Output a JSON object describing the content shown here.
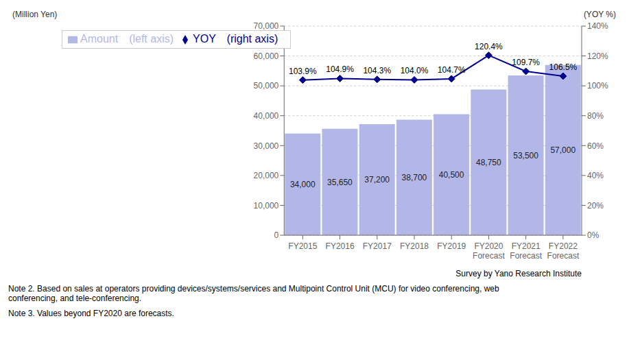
{
  "chart_data": {
    "type": "bar",
    "categories": [
      "FY2015",
      "FY2016",
      "FY2017",
      "FY2018",
      "FY2019",
      "FY2020\nForecast",
      "FY2021\nForecast",
      "FY2022\nForecast"
    ],
    "series": [
      {
        "name": "Amount　(left axis)",
        "type": "bar",
        "color": "#b3b7e8",
        "values": [
          34000,
          35650,
          37200,
          38700,
          40500,
          48750,
          53500,
          57000
        ],
        "value_labels": [
          "34,000",
          "35,650",
          "37,200",
          "38,700",
          "40,500",
          "48,750",
          "53,500",
          "57,000"
        ]
      },
      {
        "name": "YOY　(right axis)",
        "type": "line",
        "axis": "y2",
        "color": "#00008b",
        "marker": "diamond",
        "line_style": "solid",
        "values": [
          103.9,
          104.9,
          104.3,
          104.0,
          104.7,
          120.4,
          109.7,
          106.5
        ],
        "value_labels": [
          "103.9%",
          "104.9%",
          "104.3%",
          "104.0%",
          "104.7%",
          "120.4%",
          "109.7%",
          "106.5%"
        ]
      }
    ],
    "ylabel": "(Million Yen)",
    "y2label": "(YOY %)",
    "ylim": [
      0,
      70000
    ],
    "yticks": [
      0,
      {
        "value": 10000,
        "label": "10,000"
      },
      {
        "value": 20000,
        "label": "20,000"
      },
      {
        "value": 30000,
        "label": "30,000"
      },
      {
        "value": 40000,
        "label": "40,000"
      },
      {
        "value": 50000,
        "label": "50,000"
      },
      {
        "value": 60000,
        "label": "60,000"
      },
      {
        "value": 70000,
        "label": "70,000"
      }
    ],
    "y2lim": [
      0,
      140
    ],
    "y2ticks": [
      {
        "value": 0,
        "label": "0%"
      },
      {
        "value": 20,
        "label": "20%"
      },
      {
        "value": 40,
        "label": "40%"
      },
      {
        "value": 60,
        "label": "60%"
      },
      {
        "value": 80,
        "label": "80%"
      },
      {
        "value": 100,
        "label": "100%"
      },
      {
        "value": 120,
        "label": "120%"
      },
      {
        "value": 140,
        "label": "140%"
      }
    ],
    "grid": true,
    "legend": "upper left",
    "data_labels": true,
    "annotations": [
      "Survey by Yano Research Institute",
      "Note 2.  Based on sales at operators providing devices/systems/services and Multipoint Control Unit (MCU) for video conferencing, web\nconferencing, and tele-conferencing.",
      "Note 3.  Values beyond FY2020 are forecasts."
    ]
  }
}
